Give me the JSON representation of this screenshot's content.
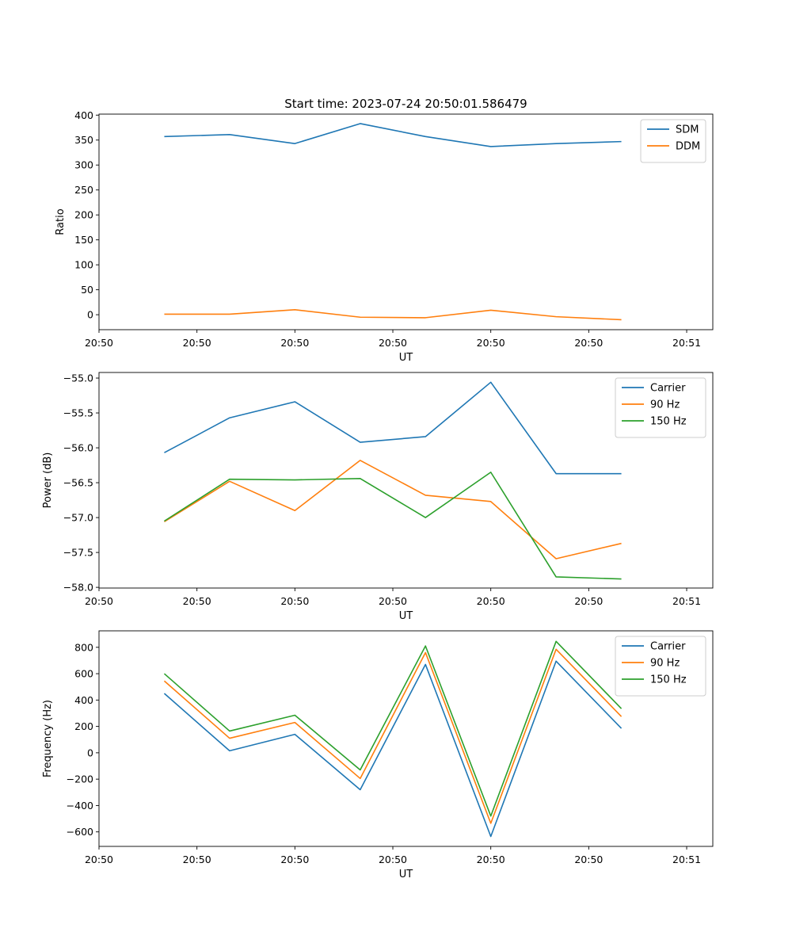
{
  "figure": {
    "suptitle": "Start time: 2023-07-24 20:50:01.586479"
  },
  "colors": {
    "blue": "#1f77b4",
    "orange": "#ff7f0e",
    "green": "#2ca02c"
  },
  "chart_data": [
    {
      "type": "line",
      "title": "Start time: 2023-07-24 20:50:01.586479",
      "xlabel": "UT",
      "ylabel": "Ratio",
      "x": [
        1,
        2,
        3,
        4,
        5,
        6,
        7,
        8
      ],
      "xlim": [
        0,
        9.4
      ],
      "xticks": [
        0.0,
        1.5,
        3.0,
        4.5,
        6.0,
        7.5,
        9.0
      ],
      "xtick_labels": [
        "20:50",
        "20:50",
        "20:50",
        "20:50",
        "20:50",
        "20:50",
        "20:51"
      ],
      "ylim": [
        -30,
        402
      ],
      "yticks": [
        0,
        50,
        100,
        150,
        200,
        250,
        300,
        350,
        400
      ],
      "ytick_labels": [
        "0",
        "50",
        "100",
        "150",
        "200",
        "250",
        "300",
        "350",
        "400"
      ],
      "legend": "top-right",
      "series": [
        {
          "name": "SDM",
          "color": "#1f77b4",
          "values": [
            357,
            361,
            343,
            383,
            357,
            337,
            343,
            347
          ]
        },
        {
          "name": "DDM",
          "color": "#ff7f0e",
          "values": [
            1,
            1,
            10,
            -5,
            -6,
            9,
            -4,
            -10
          ]
        }
      ]
    },
    {
      "type": "line",
      "title": "",
      "xlabel": "UT",
      "ylabel": "Power (dB)",
      "x": [
        1,
        2,
        3,
        4,
        5,
        6,
        7,
        8
      ],
      "xlim": [
        0,
        9.4
      ],
      "xticks": [
        0.0,
        1.5,
        3.0,
        4.5,
        6.0,
        7.5,
        9.0
      ],
      "xtick_labels": [
        "20:50",
        "20:50",
        "20:50",
        "20:50",
        "20:50",
        "20:50",
        "20:51"
      ],
      "ylim": [
        -58.01,
        -54.92
      ],
      "yticks": [
        -58.0,
        -57.5,
        -57.0,
        -56.5,
        -56.0,
        -55.5,
        -55.0
      ],
      "ytick_labels": [
        "−58.0",
        "−57.5",
        "−57.0",
        "−56.5",
        "−56.0",
        "−55.5",
        "−55.0"
      ],
      "legend": "top-right",
      "series": [
        {
          "name": "Carrier",
          "color": "#1f77b4",
          "values": [
            -56.07,
            -55.57,
            -55.34,
            -55.92,
            -55.84,
            -55.06,
            -56.37,
            -56.37
          ]
        },
        {
          "name": "90 Hz",
          "color": "#ff7f0e",
          "values": [
            -57.06,
            -56.48,
            -56.9,
            -56.18,
            -56.68,
            -56.77,
            -57.59,
            -57.37
          ]
        },
        {
          "name": "150 Hz",
          "color": "#2ca02c",
          "values": [
            -57.05,
            -56.45,
            -56.46,
            -56.44,
            -57.0,
            -56.35,
            -57.85,
            -57.88
          ]
        }
      ]
    },
    {
      "type": "line",
      "title": "",
      "xlabel": "UT",
      "ylabel": "Frequency (Hz)",
      "x": [
        1,
        2,
        3,
        4,
        5,
        6,
        7,
        8
      ],
      "xlim": [
        0,
        9.4
      ],
      "xticks": [
        0.0,
        1.5,
        3.0,
        4.5,
        6.0,
        7.5,
        9.0
      ],
      "xtick_labels": [
        "20:50",
        "20:50",
        "20:50",
        "20:50",
        "20:50",
        "20:50",
        "20:51"
      ],
      "ylim": [
        -710,
        925
      ],
      "yticks": [
        -600,
        -400,
        -200,
        0,
        200,
        400,
        600,
        800
      ],
      "ytick_labels": [
        "−600",
        "−400",
        "−200",
        "0",
        "200",
        "400",
        "600",
        "800"
      ],
      "legend": "top-right",
      "series": [
        {
          "name": "Carrier",
          "color": "#1f77b4",
          "values": [
            450,
            15,
            140,
            -280,
            670,
            -635,
            695,
            185
          ]
        },
        {
          "name": "90 Hz",
          "color": "#ff7f0e",
          "values": [
            545,
            110,
            230,
            -195,
            760,
            -535,
            785,
            275
          ]
        },
        {
          "name": "150 Hz",
          "color": "#2ca02c",
          "values": [
            600,
            165,
            285,
            -130,
            810,
            -480,
            845,
            335
          ]
        }
      ]
    }
  ]
}
